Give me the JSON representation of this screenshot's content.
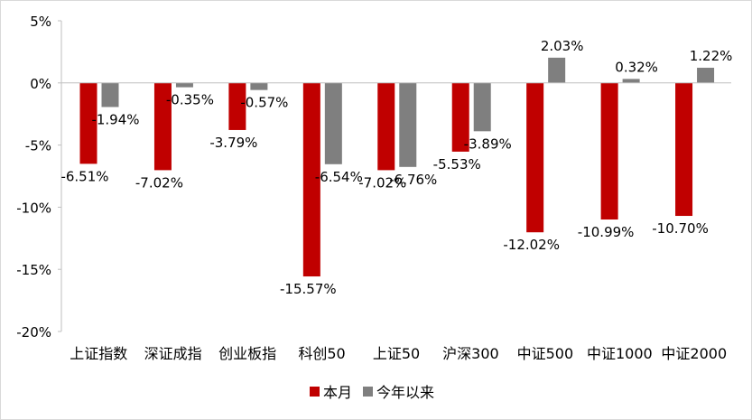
{
  "chart_data": {
    "type": "bar",
    "title": "",
    "xlabel": "",
    "ylabel": "",
    "categories": [
      "上证指数",
      "深证成指",
      "创业板指",
      "科创50",
      "上证50",
      "沪深300",
      "中证500",
      "中证1000",
      "中证2000"
    ],
    "series": [
      {
        "name": "本月",
        "color": "#C00000",
        "values": [
          -6.51,
          -7.02,
          -3.79,
          -15.57,
          -7.02,
          -5.53,
          -12.02,
          -10.99,
          -10.7
        ]
      },
      {
        "name": "今年以来",
        "color": "#7F7F7F",
        "values": [
          -1.94,
          -0.35,
          -0.57,
          -6.54,
          -6.76,
          -3.89,
          2.03,
          0.32,
          1.22
        ]
      }
    ],
    "ylim": [
      -20,
      5
    ],
    "yticks": [
      5,
      0,
      -5,
      -10,
      -15,
      -20
    ],
    "ytick_labels": [
      "5%",
      "0%",
      "-5%",
      "-10%",
      "-15%",
      "-20%"
    ],
    "value_format": "percent, 2 decimals",
    "grid": false,
    "legend": "bottom-center"
  }
}
